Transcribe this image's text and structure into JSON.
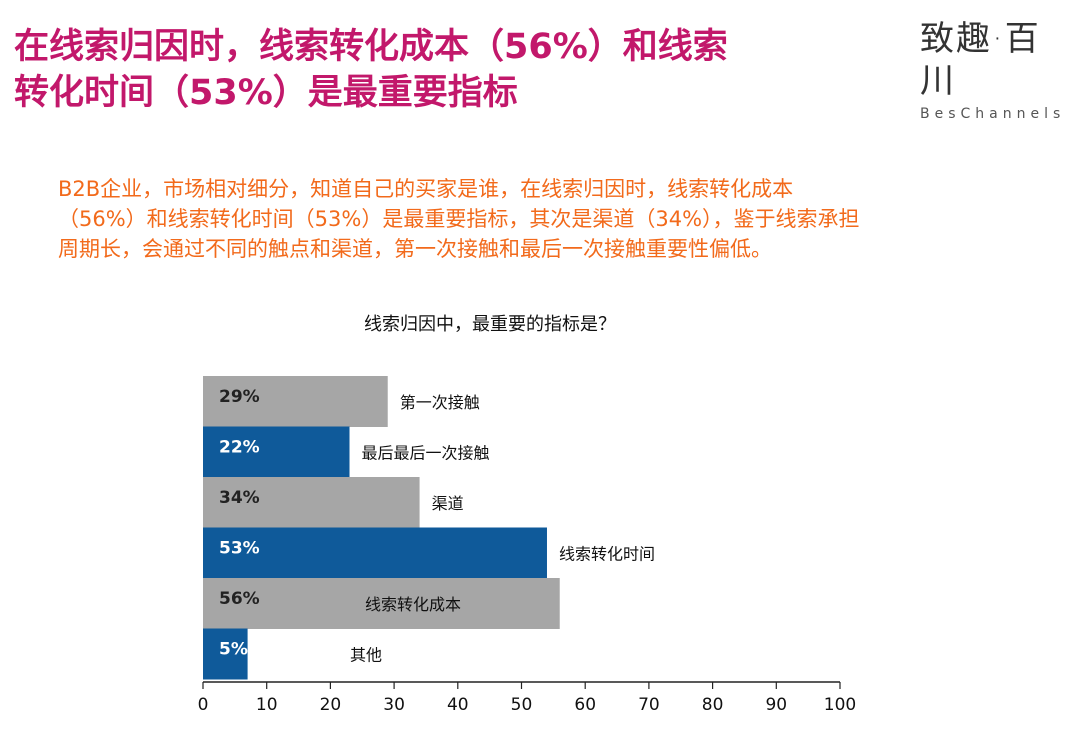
{
  "header": {
    "title_line1": "在线索归因时，线索转化成本（56%）和线索",
    "title_line2": "转化时间（53%）是最重要指标",
    "brand_mark": "致趣·百川",
    "brand_sub": "BesChannels",
    "summary_lines": [
      "B2B企业，市场相对细分，知道自己的买家是谁，在线索归因时，线索转化成本",
      "（56%）和线索转化时间（53%）是最重要指标，其次是渠道（34%），鉴于线索承担",
      "周期长，会通过不同的触点和渠道，第一次接触和最后一次接触重要性偏低。"
    ]
  },
  "colors": {
    "title": "#c2186b",
    "summary": "#f26a1b",
    "gray_bar": "#a6a6a6",
    "blue_bar": "#0f5a9a"
  },
  "chart_data": {
    "type": "bar",
    "orientation": "horizontal",
    "title": "线索归因中，最重要的指标是？",
    "categories": [
      "第一次接触",
      "最后最后一次接触",
      "渠道",
      "线索转化时间",
      "线索转化成本",
      "其他"
    ],
    "values": [
      29,
      22,
      34,
      53,
      56,
      5
    ],
    "bar_value_estimates": [
      29,
      23,
      34,
      54,
      56,
      7
    ],
    "labels": [
      "29%",
      "22%",
      "34%",
      "53%",
      "56%",
      "5%"
    ],
    "bar_colors": [
      "gray",
      "blue",
      "gray",
      "blue",
      "gray",
      "blue"
    ],
    "xlim": [
      0,
      100
    ],
    "xticks": [
      "0",
      "10",
      "20",
      "30",
      "40",
      "50",
      "60",
      "70",
      "80",
      "90",
      "100"
    ],
    "grid": false,
    "legend": "none"
  }
}
